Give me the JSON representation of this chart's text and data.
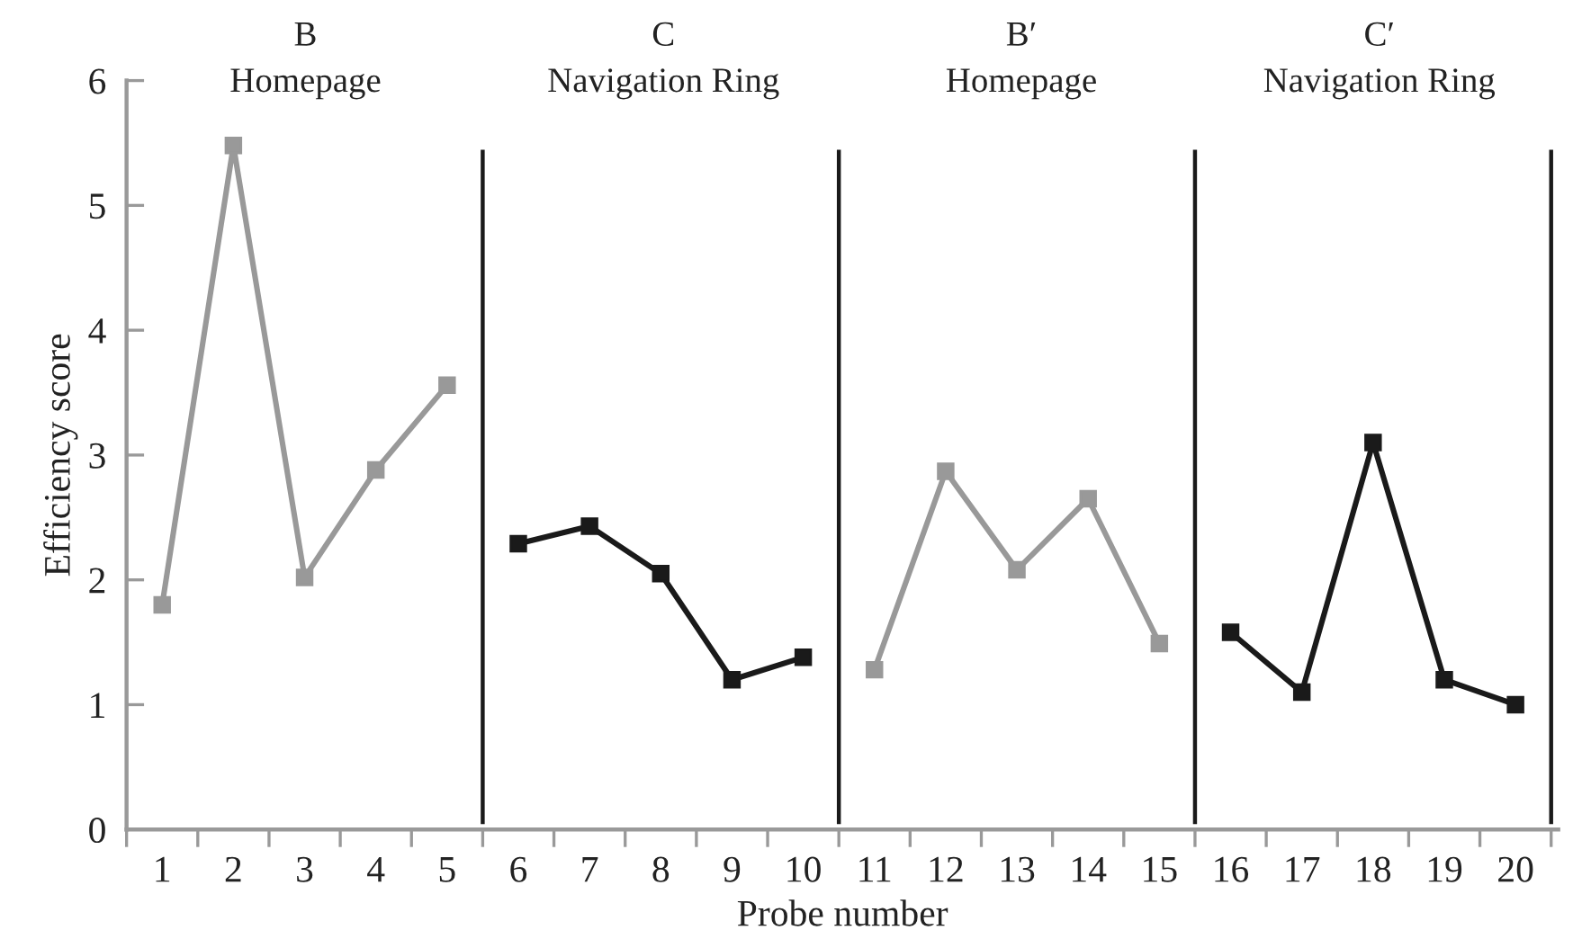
{
  "chart_data": {
    "type": "line",
    "xlabel": "Probe number",
    "ylabel": "Efficiency score",
    "marker": "square",
    "line_style": "solid",
    "grid": false,
    "legend": false,
    "xlim": [
      0.5,
      20.6
    ],
    "ylim": [
      0,
      6
    ],
    "yticks": [
      0,
      1,
      2,
      3,
      4,
      5,
      6
    ],
    "xticks": [
      {
        "value": 0.5,
        "label": null
      },
      1,
      {
        "value": 1.5,
        "label": null
      },
      2,
      {
        "value": 2.5,
        "label": null
      },
      3,
      {
        "value": 3.5,
        "label": null
      },
      4,
      {
        "value": 4.5,
        "label": null
      },
      5,
      {
        "value": 5.5,
        "label": null
      },
      6,
      {
        "value": 6.5,
        "label": null
      },
      7,
      {
        "value": 7.5,
        "label": null
      },
      8,
      {
        "value": 8.5,
        "label": null
      },
      9,
      {
        "value": 9.5,
        "label": null
      },
      10,
      {
        "value": 10.5,
        "label": null
      },
      11,
      {
        "value": 11.5,
        "label": null
      },
      12,
      {
        "value": 12.5,
        "label": null
      },
      13,
      {
        "value": 13.5,
        "label": null
      },
      14,
      {
        "value": 14.5,
        "label": null
      },
      15,
      {
        "value": 15.5,
        "label": null
      },
      16,
      {
        "value": 16.5,
        "label": null
      },
      17,
      {
        "value": 17.5,
        "label": null
      },
      18,
      {
        "value": 18.5,
        "label": null
      },
      19,
      {
        "value": 19.5,
        "label": null
      },
      20,
      {
        "value": 20.5,
        "label": null
      }
    ],
    "series": [
      {
        "color": "#999999",
        "x": [
          1,
          2,
          3,
          4,
          5
        ],
        "values": [
          1.8,
          5.48,
          2.02,
          2.88,
          3.56
        ]
      },
      {
        "color": "#1a1a1a",
        "x": [
          6,
          7,
          8,
          9,
          10
        ],
        "values": [
          2.29,
          2.43,
          2.05,
          1.2,
          1.38
        ]
      },
      {
        "color": "#999999",
        "x": [
          11,
          12,
          13,
          14,
          15
        ],
        "values": [
          1.28,
          2.87,
          2.08,
          2.65,
          1.49
        ]
      },
      {
        "color": "#1a1a1a",
        "x": [
          16,
          17,
          18,
          19,
          20
        ],
        "values": [
          1.58,
          1.1,
          3.1,
          1.2,
          1.0
        ]
      }
    ],
    "ref_lines": [
      {
        "axis": "x",
        "value": 5.5,
        "color": "#1a1a1a"
      },
      {
        "axis": "x",
        "value": 10.5,
        "color": "#1a1a1a"
      },
      {
        "axis": "x",
        "value": 15.5,
        "color": "#1a1a1a"
      },
      {
        "axis": "x",
        "value": 20.5,
        "color": "#1a1a1a"
      }
    ],
    "annotations": [
      "B\nHomepage",
      "C\nNavigation Ring",
      "B′\nHomepage",
      "C′\nNavigation Ring"
    ]
  }
}
